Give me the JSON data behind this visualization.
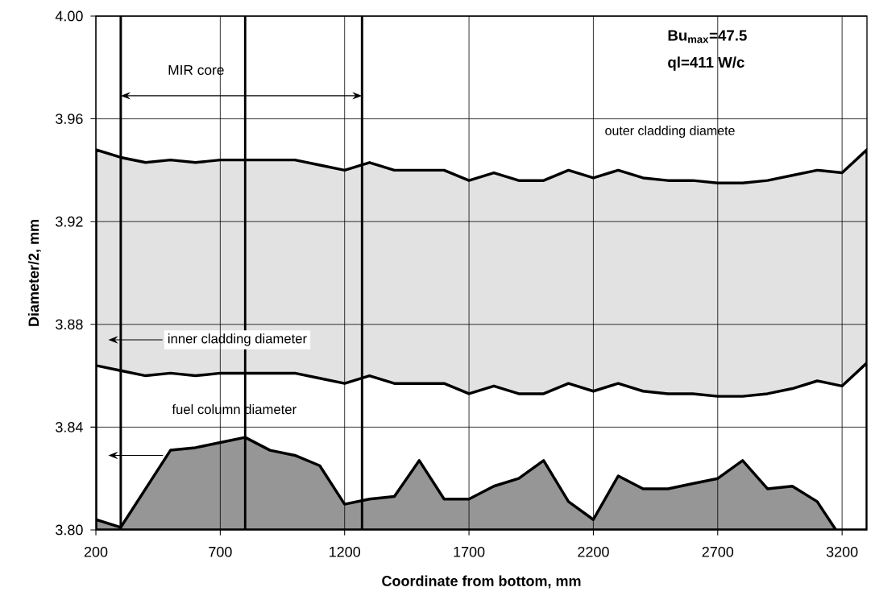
{
  "chart_data": {
    "type": "area",
    "xlabel": "Coordinate from bottom, mm",
    "ylabel": "Diameter/2, mm",
    "x": [
      200,
      300,
      400,
      500,
      600,
      700,
      800,
      900,
      1000,
      1100,
      1200,
      1300,
      1400,
      1500,
      1600,
      1700,
      1800,
      1900,
      2000,
      2100,
      2200,
      2300,
      2400,
      2500,
      2600,
      2700,
      2800,
      2900,
      3000,
      3100,
      3200,
      3300
    ],
    "series": [
      {
        "color": "#e2e2e2",
        "values": [
          3.948,
          3.945,
          3.943,
          3.944,
          3.943,
          3.944,
          3.944,
          3.944,
          3.944,
          3.942,
          3.94,
          3.943,
          3.94,
          3.94,
          3.94,
          3.936,
          3.939,
          3.936,
          3.936,
          3.94,
          3.937,
          3.94,
          3.937,
          3.936,
          3.936,
          3.935,
          3.935,
          3.936,
          3.938,
          3.94,
          3.939,
          3.948
        ]
      },
      {
        "color": "#ffffff",
        "values": [
          3.864,
          3.862,
          3.86,
          3.861,
          3.86,
          3.861,
          3.861,
          3.861,
          3.861,
          3.859,
          3.857,
          3.86,
          3.857,
          3.857,
          3.857,
          3.853,
          3.856,
          3.853,
          3.853,
          3.857,
          3.854,
          3.857,
          3.854,
          3.853,
          3.853,
          3.852,
          3.852,
          3.853,
          3.855,
          3.858,
          3.856,
          3.865
        ]
      },
      {
        "color": "#969696",
        "x": [
          200,
          300,
          400,
          500,
          600,
          700,
          800,
          900,
          1000,
          1100,
          1200,
          1300,
          1400,
          1500,
          1600,
          1700,
          1800,
          1900,
          2000,
          2100,
          2200,
          2300,
          2400,
          2500,
          2600,
          2700,
          2800,
          2900,
          3000,
          3100,
          3175
        ],
        "values": [
          3.804,
          3.801,
          3.816,
          3.831,
          3.832,
          3.834,
          3.836,
          3.831,
          3.829,
          3.825,
          3.81,
          3.812,
          3.813,
          3.827,
          3.812,
          3.812,
          3.817,
          3.82,
          3.827,
          3.811,
          3.804,
          3.821,
          3.816,
          3.816,
          3.818,
          3.82,
          3.827,
          3.816,
          3.817,
          3.811,
          3.8
        ]
      }
    ],
    "xlim": [
      200,
      3300
    ],
    "ylim": [
      3.8,
      4.0
    ],
    "xticks": [
      200,
      700,
      1200,
      1700,
      2200,
      2700,
      3200
    ],
    "yticks": [
      {
        "value": 3.8,
        "label": "3.80"
      },
      {
        "value": 3.84,
        "label": "3.84"
      },
      {
        "value": 3.88,
        "label": "3.88"
      },
      {
        "value": 3.92,
        "label": "3.92"
      },
      {
        "value": 3.96,
        "label": "3.96"
      },
      {
        "value": 4.0,
        "label": "4.00"
      }
    ],
    "grid": true,
    "ref_lines": [
      {
        "axis": "x",
        "value": 300
      },
      {
        "axis": "x",
        "value": 800
      },
      {
        "axis": "x",
        "value": 1270
      }
    ],
    "annotations": [
      "MIR core",
      "inner cladding diameter",
      "fuel column diameter",
      "**Bu$_{max}$=47.5**",
      "**ql=411 W/c**",
      "outer cladding diamete"
    ]
  }
}
